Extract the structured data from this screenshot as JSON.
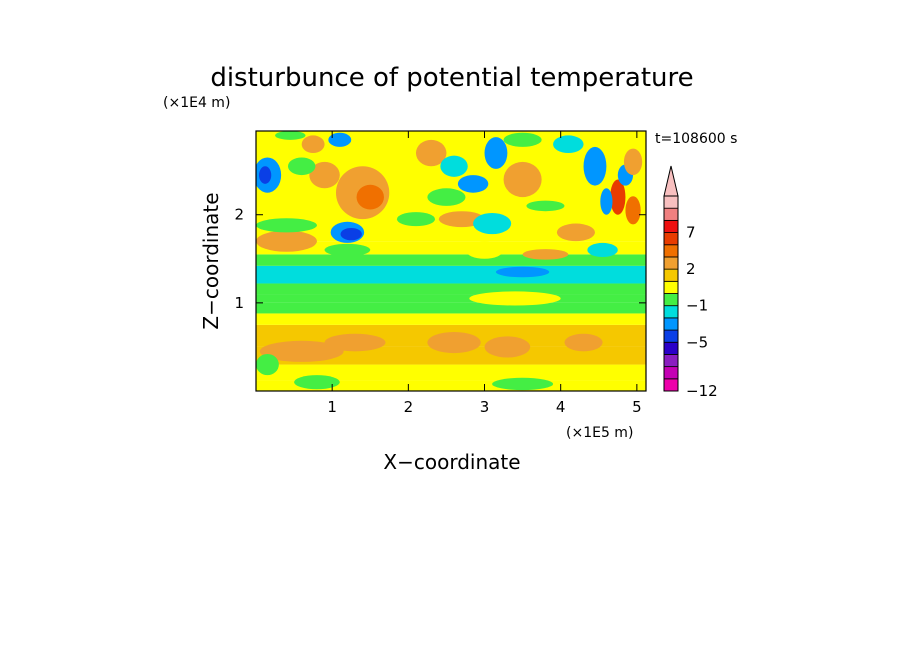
{
  "chart_data": {
    "type": "heatmap",
    "title": "disturbunce of potential temperature",
    "time_label": "t=108600 s",
    "xlabel": "X−coordinate",
    "ylabel": "Z−coordinate",
    "x_scale_label": "(×1E5 m)",
    "y_scale_label": "(×1E4 m)",
    "xlim": [
      0,
      5.12
    ],
    "ylim": [
      0,
      2.95
    ],
    "x_ticks": [
      1,
      2,
      3,
      4,
      5
    ],
    "y_ticks": [
      1,
      2
    ],
    "grid": false,
    "colorbar": {
      "placement": "right",
      "extend": "max",
      "bins": [
        {
          "lo": -12,
          "hi": -10,
          "color": "#ee00aa"
        },
        {
          "lo": -10,
          "hi": -8,
          "color": "#c400b4"
        },
        {
          "lo": -8,
          "hi": -6,
          "color": "#8a1ec0"
        },
        {
          "lo": -6,
          "hi": -5,
          "color": "#2a00c8"
        },
        {
          "lo": -5,
          "hi": -3,
          "color": "#0a3fe6"
        },
        {
          "lo": -3,
          "hi": -2,
          "color": "#0096ff"
        },
        {
          "lo": -2,
          "hi": -1,
          "color": "#00dddd"
        },
        {
          "lo": -1,
          "hi": 0,
          "color": "#44ee44"
        },
        {
          "lo": 0,
          "hi": 1,
          "color": "#ffff00"
        },
        {
          "lo": 1,
          "hi": 2,
          "color": "#f5c800"
        },
        {
          "lo": 2,
          "hi": 3,
          "color": "#f0a030"
        },
        {
          "lo": 3,
          "hi": 5,
          "color": "#f07000"
        },
        {
          "lo": 5,
          "hi": 7,
          "color": "#e83c00"
        },
        {
          "lo": 7,
          "hi": 8,
          "color": "#ee1010"
        },
        {
          "lo": 8,
          "hi": 9,
          "color": "#f08080"
        },
        {
          "lo": 9,
          "hi": 10,
          "color": "#f8c0c0"
        }
      ],
      "tick_labels": [
        {
          "value": 7,
          "text": "7"
        },
        {
          "value": 2,
          "text": "2"
        },
        {
          "value": -1,
          "text": "−1"
        },
        {
          "value": -5,
          "text": "−5"
        },
        {
          "value": -12,
          "text": "−12"
        }
      ]
    },
    "bands": [
      {
        "z": [
          0.0,
          0.12
        ],
        "value": 0.5
      },
      {
        "z": [
          0.12,
          0.3
        ],
        "value": 0.6
      },
      {
        "z": [
          0.3,
          0.5
        ],
        "value": 1.8
      },
      {
        "z": [
          0.5,
          0.75
        ],
        "value": 1.5
      },
      {
        "z": [
          0.75,
          0.88
        ],
        "value": 0.6
      },
      {
        "z": [
          0.88,
          1.0
        ],
        "value": -0.5
      },
      {
        "z": [
          1.0,
          1.1
        ],
        "value": -0.4
      },
      {
        "z": [
          1.1,
          1.22
        ],
        "value": -0.6
      },
      {
        "z": [
          1.22,
          1.42
        ],
        "value": -1.5
      },
      {
        "z": [
          1.42,
          1.55
        ],
        "value": -0.5
      },
      {
        "z": [
          1.55,
          1.7
        ],
        "value": 0.5
      },
      {
        "z": [
          1.7,
          2.95
        ],
        "value": 0.4
      }
    ],
    "features": [
      {
        "x": 0.6,
        "z": 0.45,
        "rx": 0.55,
        "rz": 0.12,
        "value": 2.5
      },
      {
        "x": 1.3,
        "z": 0.55,
        "rx": 0.4,
        "rz": 0.1,
        "value": 2.5
      },
      {
        "x": 2.6,
        "z": 0.55,
        "rx": 0.35,
        "rz": 0.12,
        "value": 2.5
      },
      {
        "x": 3.3,
        "z": 0.5,
        "rx": 0.3,
        "rz": 0.12,
        "value": 2.5
      },
      {
        "x": 4.3,
        "z": 0.55,
        "rx": 0.25,
        "rz": 0.1,
        "value": 2.5
      },
      {
        "x": 0.8,
        "z": 0.1,
        "rx": 0.3,
        "rz": 0.08,
        "value": -0.5
      },
      {
        "x": 3.5,
        "z": 0.08,
        "rx": 0.4,
        "rz": 0.07,
        "value": -0.5
      },
      {
        "x": 0.15,
        "z": 0.3,
        "rx": 0.15,
        "rz": 0.12,
        "value": -0.5
      },
      {
        "x": 3.4,
        "z": 1.05,
        "rx": 0.6,
        "rz": 0.08,
        "value": 0.5
      },
      {
        "x": 0.4,
        "z": 1.7,
        "rx": 0.4,
        "rz": 0.12,
        "value": 2.5
      },
      {
        "x": 0.4,
        "z": 1.88,
        "rx": 0.4,
        "rz": 0.08,
        "value": -0.5
      },
      {
        "x": 1.2,
        "z": 1.6,
        "rx": 0.3,
        "rz": 0.07,
        "value": -0.5
      },
      {
        "x": 1.4,
        "z": 2.25,
        "rx": 0.35,
        "rz": 0.3,
        "value": 2.5
      },
      {
        "x": 1.5,
        "z": 2.2,
        "rx": 0.18,
        "rz": 0.14,
        "value": 4
      },
      {
        "x": 0.9,
        "z": 2.45,
        "rx": 0.2,
        "rz": 0.15,
        "value": 2.5
      },
      {
        "x": 1.2,
        "z": 1.8,
        "rx": 0.22,
        "rz": 0.12,
        "value": -2.5
      },
      {
        "x": 1.25,
        "z": 1.78,
        "rx": 0.14,
        "rz": 0.07,
        "value": -4
      },
      {
        "x": 0.15,
        "z": 2.45,
        "rx": 0.18,
        "rz": 0.2,
        "value": -2.5
      },
      {
        "x": 0.12,
        "z": 2.45,
        "rx": 0.08,
        "rz": 0.1,
        "value": -4
      },
      {
        "x": 0.6,
        "z": 2.55,
        "rx": 0.18,
        "rz": 0.1,
        "value": -0.5
      },
      {
        "x": 0.75,
        "z": 2.8,
        "rx": 0.15,
        "rz": 0.1,
        "value": 2.5
      },
      {
        "x": 1.1,
        "z": 2.85,
        "rx": 0.15,
        "rz": 0.08,
        "value": -2.5
      },
      {
        "x": 0.45,
        "z": 2.9,
        "rx": 0.2,
        "rz": 0.05,
        "value": -0.5
      },
      {
        "x": 2.1,
        "z": 1.95,
        "rx": 0.25,
        "rz": 0.08,
        "value": -0.5
      },
      {
        "x": 2.3,
        "z": 2.7,
        "rx": 0.2,
        "rz": 0.15,
        "value": 2.5
      },
      {
        "x": 2.6,
        "z": 2.55,
        "rx": 0.18,
        "rz": 0.12,
        "value": -1.5
      },
      {
        "x": 2.85,
        "z": 2.35,
        "rx": 0.2,
        "rz": 0.1,
        "value": -2.5
      },
      {
        "x": 2.5,
        "z": 2.2,
        "rx": 0.25,
        "rz": 0.1,
        "value": -0.5
      },
      {
        "x": 2.7,
        "z": 1.95,
        "rx": 0.3,
        "rz": 0.09,
        "value": 2.5
      },
      {
        "x": 3.1,
        "z": 1.9,
        "rx": 0.25,
        "rz": 0.12,
        "value": -1.5
      },
      {
        "x": 3.0,
        "z": 1.6,
        "rx": 0.25,
        "rz": 0.1,
        "value": 0.5
      },
      {
        "x": 3.15,
        "z": 2.7,
        "rx": 0.15,
        "rz": 0.18,
        "value": -2.5
      },
      {
        "x": 3.5,
        "z": 2.4,
        "rx": 0.25,
        "rz": 0.2,
        "value": 2.5
      },
      {
        "x": 3.5,
        "z": 2.85,
        "rx": 0.25,
        "rz": 0.08,
        "value": -0.5
      },
      {
        "x": 3.8,
        "z": 2.1,
        "rx": 0.25,
        "rz": 0.06,
        "value": -0.5
      },
      {
        "x": 3.5,
        "z": 1.35,
        "rx": 0.35,
        "rz": 0.06,
        "value": -2.5
      },
      {
        "x": 3.8,
        "z": 1.55,
        "rx": 0.3,
        "rz": 0.06,
        "value": 2.5
      },
      {
        "x": 4.2,
        "z": 1.8,
        "rx": 0.25,
        "rz": 0.1,
        "value": 2.5
      },
      {
        "x": 4.55,
        "z": 1.6,
        "rx": 0.2,
        "rz": 0.08,
        "value": -1.5
      },
      {
        "x": 4.45,
        "z": 2.55,
        "rx": 0.15,
        "rz": 0.22,
        "value": -2.5
      },
      {
        "x": 4.75,
        "z": 2.2,
        "rx": 0.1,
        "rz": 0.2,
        "value": 6
      },
      {
        "x": 4.6,
        "z": 2.15,
        "rx": 0.08,
        "rz": 0.15,
        "value": -2.5
      },
      {
        "x": 4.95,
        "z": 2.05,
        "rx": 0.1,
        "rz": 0.16,
        "value": 4
      },
      {
        "x": 4.85,
        "z": 2.45,
        "rx": 0.1,
        "rz": 0.12,
        "value": -2.5
      },
      {
        "x": 4.95,
        "z": 2.6,
        "rx": 0.12,
        "rz": 0.15,
        "value": 2.5
      },
      {
        "x": 4.2,
        "z": 2.3,
        "rx": 0.15,
        "rz": 0.15,
        "value": 0.5
      },
      {
        "x": 4.1,
        "z": 2.8,
        "rx": 0.2,
        "rz": 0.1,
        "value": -1.5
      }
    ]
  }
}
